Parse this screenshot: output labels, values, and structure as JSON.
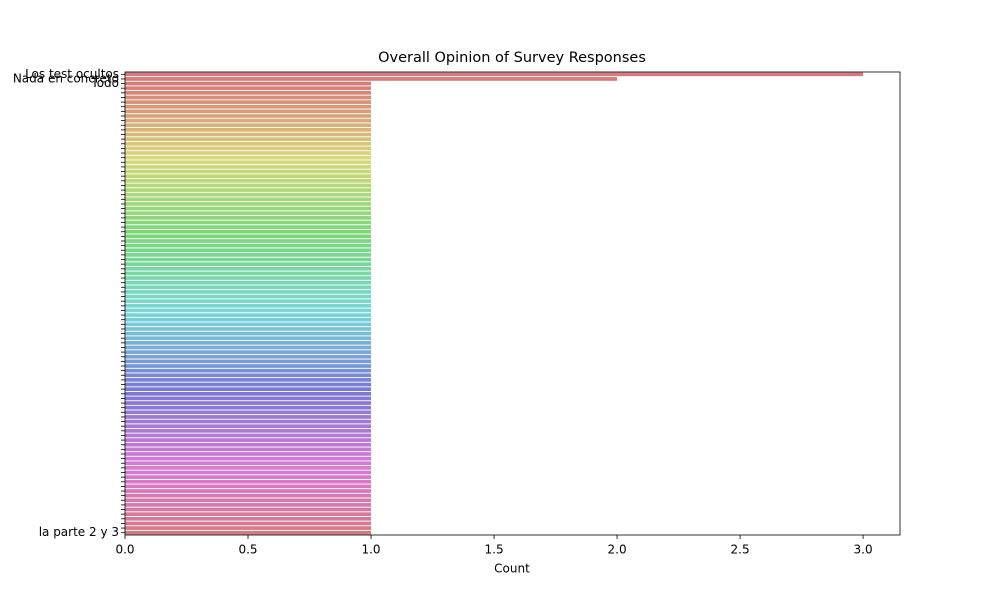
{
  "chart_data": {
    "type": "barh",
    "title": "Overall Opinion of Survey Responses",
    "xlabel": "Count",
    "categories": [
      "Los test ocultos",
      "Nada en concreto",
      "Todo",
      null,
      null,
      null,
      null,
      null,
      null,
      null,
      null,
      null,
      null,
      null,
      null,
      null,
      null,
      null,
      null,
      null,
      null,
      null,
      null,
      null,
      null,
      null,
      null,
      null,
      null,
      null,
      null,
      null,
      null,
      null,
      null,
      null,
      null,
      null,
      null,
      null,
      null,
      null,
      null,
      null,
      null,
      null,
      null,
      null,
      null,
      null,
      null,
      null,
      null,
      null,
      null,
      null,
      null,
      null,
      null,
      null,
      null,
      null,
      null,
      null,
      null,
      null,
      null,
      null,
      null,
      null,
      null,
      null,
      null,
      null,
      null,
      null,
      null,
      null,
      null,
      null,
      null,
      null,
      null,
      null,
      null,
      null,
      null,
      null,
      null,
      null,
      null,
      null,
      null,
      null,
      null,
      null,
      null,
      null,
      null,
      "la parte 2 y 3"
    ],
    "values": [
      3,
      2,
      1,
      1,
      1,
      1,
      1,
      1,
      1,
      1,
      1,
      1,
      1,
      1,
      1,
      1,
      1,
      1,
      1,
      1,
      1,
      1,
      1,
      1,
      1,
      1,
      1,
      1,
      1,
      1,
      1,
      1,
      1,
      1,
      1,
      1,
      1,
      1,
      1,
      1,
      1,
      1,
      1,
      1,
      1,
      1,
      1,
      1,
      1,
      1,
      1,
      1,
      1,
      1,
      1,
      1,
      1,
      1,
      1,
      1,
      1,
      1,
      1,
      1,
      1,
      1,
      1,
      1,
      1,
      1,
      1,
      1,
      1,
      1,
      1,
      1,
      1,
      1,
      1,
      1,
      1,
      1,
      1,
      1,
      1,
      1,
      1,
      1,
      1,
      1,
      1,
      1,
      1,
      1,
      1,
      1,
      1,
      1,
      1,
      1
    ],
    "palette": "husl",
    "xlim": [
      0,
      3.15
    ],
    "xticks": [
      {
        "value": 0,
        "label": "0.0"
      },
      0.5,
      {
        "value": 1,
        "label": "1.0"
      },
      1.5,
      {
        "value": 2,
        "label": "2.0"
      },
      2.5,
      {
        "value": 3,
        "label": "3.0"
      }
    ]
  }
}
